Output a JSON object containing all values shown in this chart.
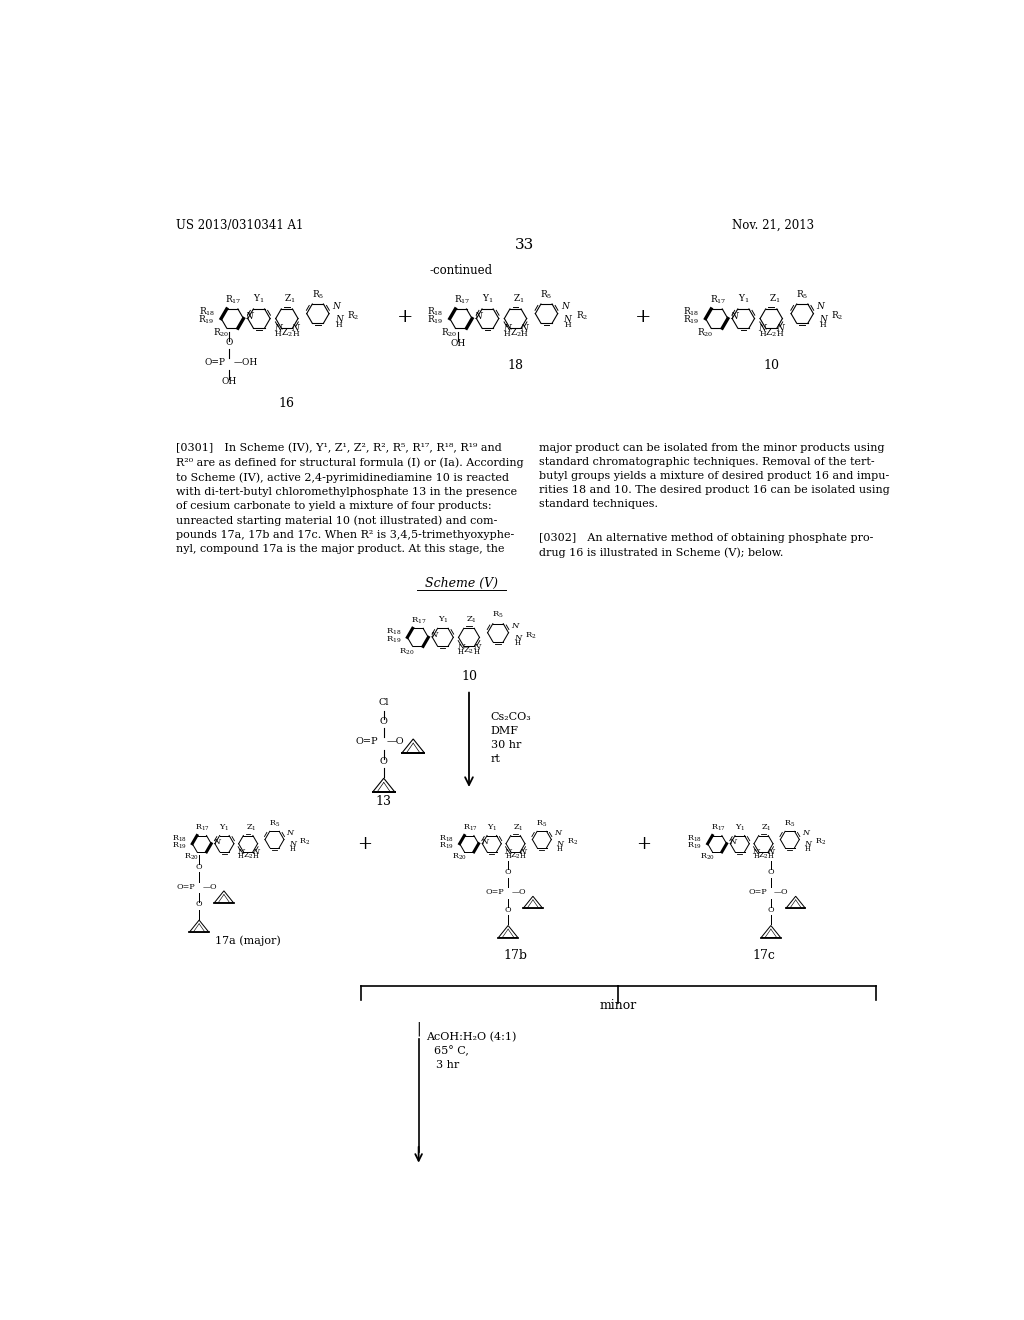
{
  "background_color": "#ffffff",
  "header_left": "US 2013/0310341 A1",
  "header_right": "Nov. 21, 2013",
  "page_number": "33",
  "continued_label": "-continued",
  "figure_width": 10.24,
  "figure_height": 13.2,
  "para1_left": "[0301] In Scheme (IV), Y¹, Z¹, Z², R², R⁵, R¹⁷, R¹⁸, R¹⁹ and\nR²⁰ are as defined for structural formula (I) or (Ia). According\nto Scheme (IV), active 2,4-pyrimidinediamine 10 is reacted\nwith di-tert-butyl chloromethylphosphate 13 in the presence\nof cesium carbonate to yield a mixture of four products:\nunreacted starting material 10 (not illustrated) and com-\npounds 17a, 17b and 17c. When R² is 3,4,5-trimethyoxyphe-\nnyl, compound 17a is the major product. At this stage, the",
  "para1_right": "major product can be isolated from the minor products using\nstandard chromatographic techniques. Removal of the tert-\nbutyl groups yields a mixture of desired product 16 and impu-\nrities 18 and 10. The desired product 16 can be isolated using\nstandard techniques.",
  "para2_right": "[0302] An alternative method of obtaining phosphate pro-\ndrug 16 is illustrated in Scheme (V); below."
}
